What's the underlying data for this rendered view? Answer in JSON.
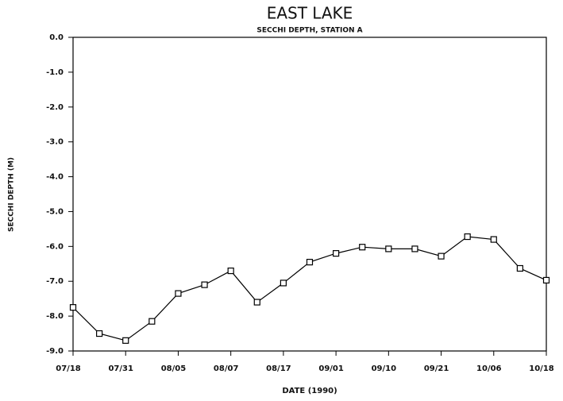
{
  "chart_data": {
    "type": "line",
    "title": "EAST LAKE",
    "subtitle": "SECCHI DEPTH, STATION A",
    "x_label": "DATE (1990)",
    "y_label": "SECCHI DEPTH (M)",
    "categories": [
      "07/18",
      null,
      "07/31",
      null,
      "08/05",
      null,
      "08/07",
      null,
      "08/17",
      null,
      "09/01",
      null,
      "09/10",
      null,
      "09/21",
      null,
      "10/06",
      null,
      "10/18"
    ],
    "series": [
      {
        "color": "#000000",
        "values": [
          -7.75,
          -8.5,
          -8.7,
          -8.15,
          -7.35,
          -7.1,
          -6.7,
          -7.6,
          -7.05,
          -6.45,
          -6.2,
          -6.02,
          -6.07,
          -6.07,
          -6.28,
          -5.72,
          -5.8,
          -6.63,
          -6.97
        ]
      }
    ],
    "ylim": [
      -9,
      0
    ],
    "yticks": [
      {
        "value": 0,
        "label": "0.0"
      },
      {
        "value": -1,
        "label": "-1.0"
      },
      {
        "value": -2,
        "label": "-2.0"
      },
      {
        "value": -3,
        "label": "-3.0"
      },
      {
        "value": -4,
        "label": "-4.0"
      },
      {
        "value": -5,
        "label": "-5.0"
      },
      {
        "value": -6,
        "label": "-6.0"
      },
      {
        "value": -7,
        "label": "-7.0"
      },
      {
        "value": -8,
        "label": "-8.0"
      },
      {
        "value": -9,
        "label": "-9.0"
      }
    ],
    "grid": false
  }
}
